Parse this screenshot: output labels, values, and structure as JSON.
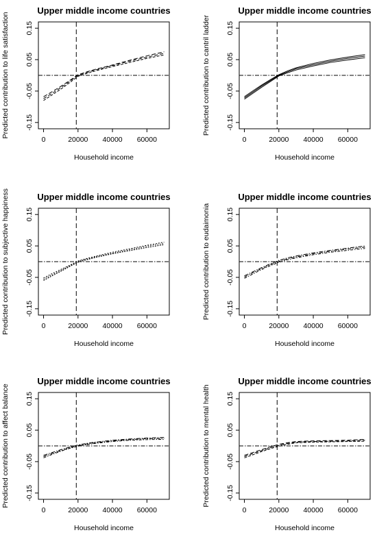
{
  "chart_data": [
    {
      "type": "line",
      "title": "Upper middle income countries",
      "xlabel": "Household income",
      "ylabel": "Predicted contribution to life satisfaction",
      "xlim": [
        -3000,
        73000
      ],
      "ylim": [
        -0.17,
        0.17
      ],
      "xticks": [
        0,
        20000,
        40000,
        60000
      ],
      "xtick_labels": [
        "0",
        "20000",
        "40000",
        "60000"
      ],
      "yticks": [
        -0.15,
        -0.05,
        0.05,
        0.15
      ],
      "ytick_labels": [
        "-0.15",
        "-0.05",
        "0.05",
        "0.15"
      ],
      "vline_x": 19000,
      "hline_y": 0,
      "x": [
        0,
        5000,
        10000,
        15000,
        20000,
        25000,
        30000,
        40000,
        50000,
        60000,
        70000
      ],
      "series": [
        {
          "values": [
            -0.068,
            -0.052,
            -0.035,
            -0.017,
            0.002,
            0.011,
            0.019,
            0.033,
            0.048,
            0.062,
            0.075
          ]
        },
        {
          "values": [
            -0.074,
            -0.057,
            -0.039,
            -0.02,
            0.0,
            0.009,
            0.017,
            0.031,
            0.045,
            0.058,
            0.07
          ]
        },
        {
          "values": [
            -0.08,
            -0.062,
            -0.044,
            -0.024,
            -0.003,
            0.006,
            0.014,
            0.028,
            0.041,
            0.054,
            0.065
          ]
        }
      ],
      "line_style": "dashed",
      "grid": false,
      "legend": "none"
    },
    {
      "type": "line",
      "title": "Upper middle income countries",
      "xlabel": "Household income",
      "ylabel": "Predicted contribution to cantril ladder",
      "xlim": [
        -3000,
        73000
      ],
      "ylim": [
        -0.17,
        0.17
      ],
      "xticks": [
        0,
        20000,
        40000,
        60000
      ],
      "xtick_labels": [
        "0",
        "20000",
        "40000",
        "60000"
      ],
      "yticks": [
        -0.15,
        -0.05,
        0.05,
        0.15
      ],
      "ytick_labels": [
        "-0.15",
        "-0.05",
        "0.05",
        "0.15"
      ],
      "vline_x": 19000,
      "hline_y": 0,
      "x": [
        0,
        5000,
        10000,
        15000,
        20000,
        25000,
        30000,
        40000,
        50000,
        60000,
        70000
      ],
      "series": [
        {
          "values": [
            -0.068,
            -0.049,
            -0.031,
            -0.014,
            0.002,
            0.014,
            0.024,
            0.038,
            0.049,
            0.058,
            0.066
          ]
        },
        {
          "values": [
            -0.072,
            -0.053,
            -0.034,
            -0.017,
            0.0,
            0.011,
            0.021,
            0.034,
            0.045,
            0.054,
            0.061
          ]
        },
        {
          "values": [
            -0.076,
            -0.057,
            -0.038,
            -0.02,
            -0.002,
            0.008,
            0.017,
            0.03,
            0.041,
            0.049,
            0.056
          ]
        }
      ],
      "line_style": "solid",
      "grid": false,
      "legend": "none"
    },
    {
      "type": "line",
      "title": "Upper middle income countries",
      "xlabel": "Household income",
      "ylabel": "Predicted contribution to subjective happiness",
      "xlim": [
        -3000,
        73000
      ],
      "ylim": [
        -0.17,
        0.17
      ],
      "xticks": [
        0,
        20000,
        40000,
        60000
      ],
      "xtick_labels": [
        "0",
        "20000",
        "40000",
        "60000"
      ],
      "yticks": [
        -0.15,
        -0.05,
        0.05,
        0.15
      ],
      "ytick_labels": [
        "-0.15",
        "-0.05",
        "0.05",
        "0.15"
      ],
      "vline_x": 19000,
      "hline_y": 0,
      "x": [
        0,
        5000,
        10000,
        15000,
        20000,
        25000,
        30000,
        40000,
        50000,
        60000,
        70000
      ],
      "series": [
        {
          "values": [
            -0.052,
            -0.038,
            -0.025,
            -0.012,
            0.002,
            0.01,
            0.017,
            0.03,
            0.041,
            0.052,
            0.062
          ]
        },
        {
          "values": [
            -0.056,
            -0.042,
            -0.028,
            -0.014,
            0.0,
            0.008,
            0.015,
            0.027,
            0.038,
            0.049,
            0.058
          ]
        },
        {
          "values": [
            -0.06,
            -0.045,
            -0.031,
            -0.016,
            -0.002,
            0.006,
            0.013,
            0.025,
            0.035,
            0.045,
            0.054
          ]
        }
      ],
      "line_style": "dotted",
      "grid": false,
      "legend": "none"
    },
    {
      "type": "line",
      "title": "Upper middle income countries",
      "xlabel": "Household income",
      "ylabel": "Predicted contribution to eudaimonia",
      "xlim": [
        -3000,
        73000
      ],
      "ylim": [
        -0.17,
        0.17
      ],
      "xticks": [
        0,
        20000,
        40000,
        60000
      ],
      "xtick_labels": [
        "0",
        "20000",
        "40000",
        "60000"
      ],
      "yticks": [
        -0.15,
        -0.05,
        0.05,
        0.15
      ],
      "ytick_labels": [
        "-0.15",
        "-0.05",
        "0.05",
        "0.15"
      ],
      "vline_x": 19000,
      "hline_y": 0,
      "x": [
        0,
        5000,
        10000,
        15000,
        20000,
        25000,
        30000,
        40000,
        50000,
        60000,
        70000
      ],
      "series": [
        {
          "values": [
            -0.045,
            -0.032,
            -0.019,
            -0.007,
            0.004,
            0.012,
            0.018,
            0.028,
            0.036,
            0.043,
            0.05
          ]
        },
        {
          "values": [
            -0.049,
            -0.035,
            -0.022,
            -0.01,
            0.001,
            0.009,
            0.015,
            0.025,
            0.033,
            0.04,
            0.046
          ]
        },
        {
          "values": [
            -0.053,
            -0.039,
            -0.025,
            -0.013,
            -0.002,
            0.006,
            0.012,
            0.022,
            0.03,
            0.036,
            0.042
          ]
        }
      ],
      "line_style": "dash-dot",
      "grid": false,
      "legend": "none"
    },
    {
      "type": "line",
      "title": "Upper middle income countries",
      "xlabel": "Household income",
      "ylabel": "Predicted contribution to affect balance",
      "xlim": [
        -3000,
        73000
      ],
      "ylim": [
        -0.17,
        0.17
      ],
      "xticks": [
        0,
        20000,
        40000,
        60000
      ],
      "xtick_labels": [
        "0",
        "20000",
        "40000",
        "60000"
      ],
      "yticks": [
        -0.15,
        -0.05,
        0.05,
        0.15
      ],
      "ytick_labels": [
        "-0.15",
        "-0.05",
        "0.05",
        "0.15"
      ],
      "vline_x": 19000,
      "hline_y": 0,
      "x": [
        0,
        5000,
        10000,
        15000,
        20000,
        25000,
        30000,
        40000,
        50000,
        60000,
        70000
      ],
      "series": [
        {
          "values": [
            -0.03,
            -0.021,
            -0.012,
            -0.004,
            0.003,
            0.008,
            0.012,
            0.018,
            0.022,
            0.025,
            0.027
          ]
        },
        {
          "values": [
            -0.034,
            -0.024,
            -0.015,
            -0.006,
            0.001,
            0.006,
            0.01,
            0.016,
            0.02,
            0.023,
            0.024
          ]
        },
        {
          "values": [
            -0.038,
            -0.027,
            -0.017,
            -0.008,
            -0.001,
            0.004,
            0.008,
            0.014,
            0.018,
            0.02,
            0.021
          ]
        }
      ],
      "line_style": "dash-dot",
      "grid": false,
      "legend": "none"
    },
    {
      "type": "line",
      "title": "Upper middle income countries",
      "xlabel": "Household income",
      "ylabel": "Predicted contribution to mental health",
      "xlim": [
        -3000,
        73000
      ],
      "ylim": [
        -0.17,
        0.17
      ],
      "xticks": [
        0,
        20000,
        40000,
        60000
      ],
      "xtick_labels": [
        "0",
        "20000",
        "40000",
        "60000"
      ],
      "yticks": [
        -0.15,
        -0.05,
        0.05,
        0.15
      ],
      "ytick_labels": [
        "-0.15",
        "-0.05",
        "0.05",
        "0.15"
      ],
      "vline_x": 19000,
      "hline_y": 0,
      "x": [
        0,
        5000,
        10000,
        15000,
        20000,
        25000,
        30000,
        40000,
        50000,
        60000,
        70000
      ],
      "series": [
        {
          "values": [
            -0.03,
            -0.021,
            -0.012,
            -0.003,
            0.005,
            0.01,
            0.014,
            0.016,
            0.017,
            0.018,
            0.021
          ]
        },
        {
          "values": [
            -0.034,
            -0.024,
            -0.015,
            -0.006,
            0.002,
            0.008,
            0.012,
            0.014,
            0.015,
            0.016,
            0.018
          ]
        },
        {
          "values": [
            -0.038,
            -0.028,
            -0.018,
            -0.009,
            -0.001,
            0.005,
            0.01,
            0.012,
            0.013,
            0.014,
            0.015
          ]
        }
      ],
      "line_style": "dashed",
      "grid": false,
      "legend": "none"
    }
  ]
}
